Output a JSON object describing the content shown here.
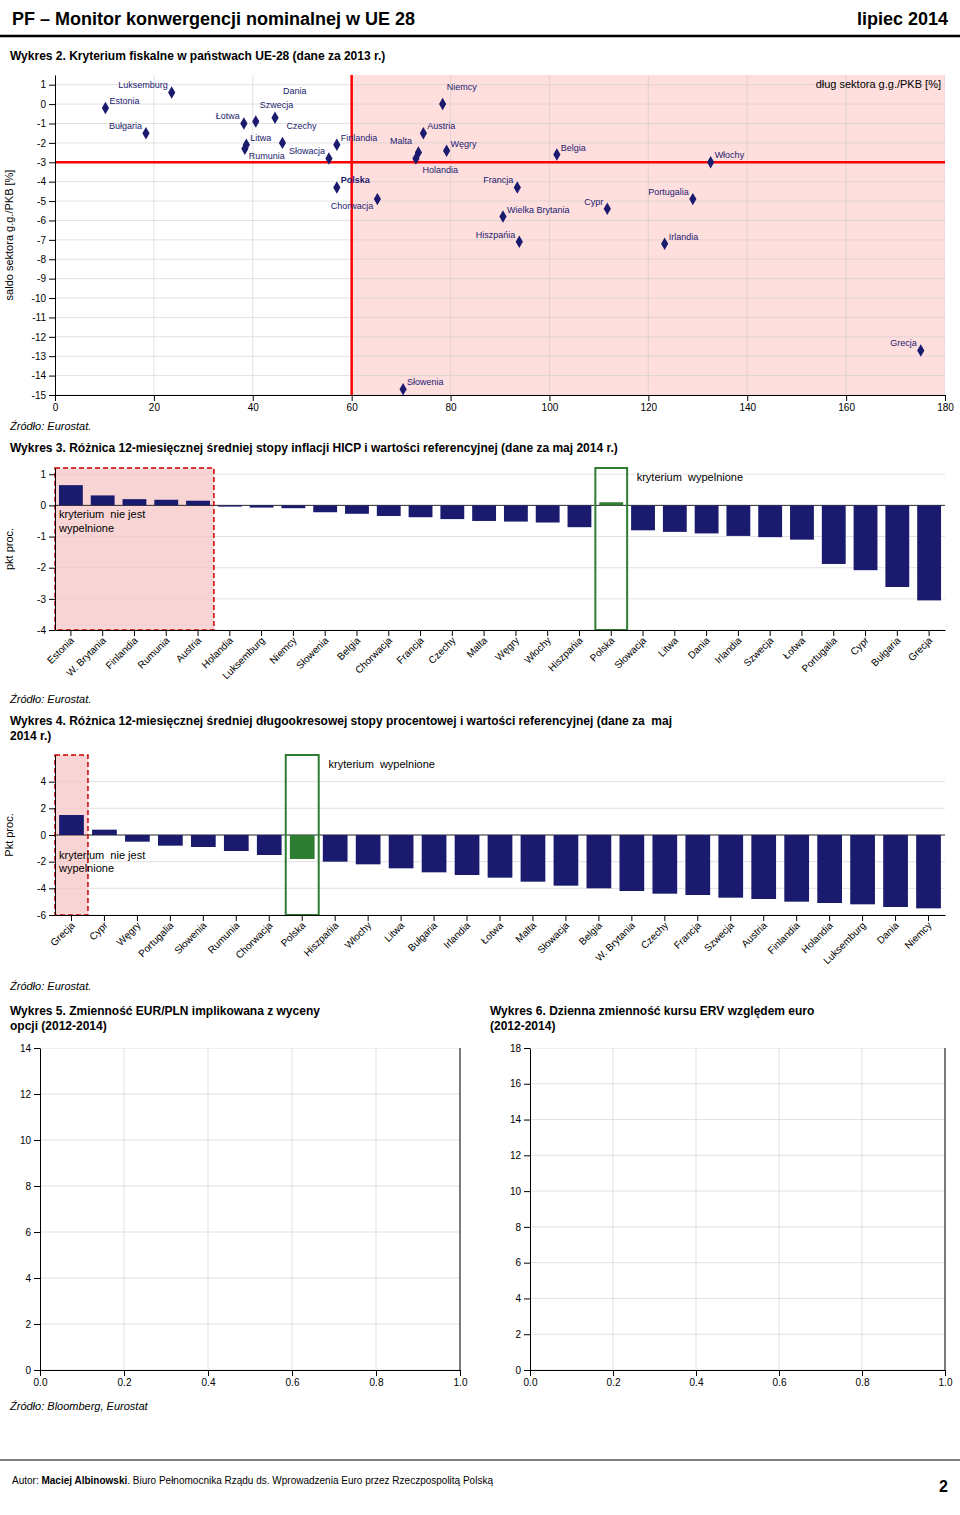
{
  "title": "PF – Monitor konwergencji nominalnej w UE 28",
  "annotations": [
    "lipiec 2014",
    "Źródło: Bloomberg, Eurostat",
    "Autor: ",
    "Maciej Albinowski",
    ". Biuro Pełnomocnika Rządu ds. Wprowadzenia Euro przez Rzeczpospolitą Polską",
    "2"
  ],
  "chart_data": [
    {
      "type": "scatter",
      "title": "Wykres 2. Kryterium fiskalne w państwach UE-28 (dane za 2013 r.)",
      "xlabel": "dług sektora g.g./PKB [%]",
      "ylabel": "saldo sektora g.g./PKB [%]",
      "annotations": [
        "Źródło: Eurostat."
      ],
      "labels": [
        "Estonia",
        "Luksemburg",
        "Bułgaria",
        "Łotwa",
        "Litwa",
        "Czechy",
        "Szwecja",
        "Dania",
        "Rumunia",
        "Słowacja",
        "Finlandia",
        "Austria",
        "Holandia",
        "Malta",
        "Niemcy",
        "Węgry",
        "Belgia",
        "Włochy",
        "Polska",
        "Chorwacja",
        "Francja",
        "Wielka Brytania",
        "Cypr",
        "Portugalia",
        "Hiszpańia",
        "Irlandia",
        "Słowenia",
        "Grecja"
      ],
      "x": [
        10.2,
        23.6,
        18.4,
        38.2,
        38.7,
        46.0,
        40.6,
        44.5,
        38.4,
        55.4,
        57.0,
        74.5,
        73.5,
        73.0,
        78.4,
        79.2,
        101.5,
        132.6,
        57.0,
        65.2,
        93.5,
        90.6,
        111.7,
        129.0,
        93.9,
        123.3,
        70.4,
        175.1
      ],
      "values": [
        -0.2,
        0.6,
        -1.5,
        -1.0,
        -2.1,
        -2.0,
        -0.9,
        -0.7,
        -2.3,
        -2.8,
        -2.1,
        -1.5,
        -2.5,
        -2.8,
        0.0,
        -2.4,
        -2.6,
        -3.0,
        -4.3,
        -4.9,
        -4.3,
        -5.8,
        -5.4,
        -4.9,
        -7.1,
        -7.2,
        -14.7,
        -12.7
      ],
      "color": "#1a1a6e",
      "marker": "diamond",
      "highlight_index": 18,
      "xlim": [
        0,
        180
      ],
      "ylim": [
        -15,
        1.5
      ],
      "xticks": [
        0,
        20,
        40,
        60,
        80,
        100,
        120,
        140,
        160,
        180
      ],
      "yticks": [
        1,
        0,
        -1,
        -2,
        -3,
        -4,
        -5,
        -6,
        -7,
        -8,
        -9,
        -10,
        -11,
        -12,
        -13,
        -14,
        -15
      ],
      "xspan": [
        60,
        180
      ],
      "xline": 60,
      "yline": -3,
      "grid": true
    },
    {
      "type": "bar",
      "title": "Wykres 3. Różnica 12-miesięcznej średniej stopy inflacji HICP i wartości referencyjnej (dane za maj 2014 r.)",
      "ylabel": "pkt proc.",
      "annotations": [
        "Źródło: Eurostat.",
        "kryterium  wypelnione",
        "kryterium  nie jest\nwypelnione"
      ],
      "categories": [
        "Estonia",
        "W. Brytania",
        "Finlandia",
        "Rumunia",
        "Austria",
        "Holandia",
        "Luksemburg",
        "Niemcy",
        "Słowenia",
        "Belgia",
        "Chorwacja",
        "Francja",
        "Czechy",
        "Malta",
        "Węgry",
        "Włochy",
        "Hiszpańia",
        "Polska",
        "Słowacja",
        "Litwa",
        "Dania",
        "Irlandia",
        "Szwecja",
        "Łotwa",
        "Portugalia",
        "Cypr",
        "Bułgaria",
        "Grecja"
      ],
      "values": [
        0.65,
        0.32,
        0.2,
        0.18,
        0.15,
        -0.04,
        -0.07,
        -0.09,
        -0.22,
        -0.27,
        -0.34,
        -0.38,
        -0.44,
        -0.5,
        -0.52,
        -0.55,
        -0.7,
        0.1,
        -0.8,
        -0.85,
        -0.9,
        -0.98,
        -1.02,
        -1.1,
        -1.88,
        -2.08,
        -2.62,
        -3.05
      ],
      "colors": [
        "#1a1a6e",
        "#1a1a6e",
        "#1a1a6e",
        "#1a1a6e",
        "#1a1a6e",
        "#1a1a6e",
        "#1a1a6e",
        "#1a1a6e",
        "#1a1a6e",
        "#1a1a6e",
        "#1a1a6e",
        "#1a1a6e",
        "#1a1a6e",
        "#1a1a6e",
        "#1a1a6e",
        "#1a1a6e",
        "#1a1a6e",
        "#2e7d32",
        "#1a1a6e",
        "#1a1a6e",
        "#1a1a6e",
        "#1a1a6e",
        "#1a1a6e",
        "#1a1a6e",
        "#1a1a6e",
        "#1a1a6e",
        "#1a1a6e",
        "#1a1a6e"
      ],
      "highlight_index": 17,
      "not_fulfilled_count": 5,
      "ylim": [
        -4,
        1.2
      ],
      "yticks": [
        -4,
        -3,
        -2,
        -1,
        0,
        1
      ],
      "grid": "y"
    },
    {
      "type": "bar",
      "title": "Wykres 4. Różnica 12-miesięcznej średniej długookresowej stopy procentowej i wartości referencyjnej (dane za  maj\n2014 r.)",
      "ylabel": "Pkt proc.",
      "annotations": [
        "Źródło: Eurostat.",
        "kryterium  wypelnione",
        "kryterium  nie jest\nwypelnione"
      ],
      "categories": [
        "Grecja",
        "Cypr",
        "Węgry",
        "Portugalia",
        "Słowenia",
        "Rumunia",
        "Chorwacja",
        "Polska",
        "Hiszpańia",
        "Włochy",
        "Litwa",
        "Bułgaria",
        "Irlandia",
        "Łotwa",
        "Malta",
        "Słowacja",
        "Belgia",
        "W. Brytania",
        "Czechy",
        "Francja",
        "Szwecja",
        "Austria",
        "Finlandia",
        "Holandia",
        "Luksemburg",
        "Dania",
        "Niemcy"
      ],
      "values": [
        1.5,
        0.4,
        -0.5,
        -0.8,
        -0.9,
        -1.2,
        -1.5,
        -1.8,
        -2.0,
        -2.2,
        -2.5,
        -2.8,
        -3.0,
        -3.2,
        -3.5,
        -3.8,
        -4.0,
        -4.2,
        -4.4,
        -4.5,
        -4.7,
        -4.8,
        -5.0,
        -5.1,
        -5.2,
        -5.4,
        -5.5
      ],
      "colors": [
        "#1a1a6e",
        "#1a1a6e",
        "#1a1a6e",
        "#1a1a6e",
        "#1a1a6e",
        "#1a1a6e",
        "#1a1a6e",
        "#2e7d32",
        "#1a1a6e",
        "#1a1a6e",
        "#1a1a6e",
        "#1a1a6e",
        "#1a1a6e",
        "#1a1a6e",
        "#1a1a6e",
        "#1a1a6e",
        "#1a1a6e",
        "#1a1a6e",
        "#1a1a6e",
        "#1a1a6e",
        "#1a1a6e",
        "#1a1a6e",
        "#1a1a6e",
        "#1a1a6e",
        "#1a1a6e",
        "#1a1a6e",
        "#1a1a6e"
      ],
      "highlight_index": 7,
      "not_fulfilled_count": 1,
      "ylim": [
        -6,
        6
      ],
      "yticks": [
        -6,
        -4,
        -2,
        0,
        2,
        4
      ],
      "grid": "y"
    },
    {
      "type": "line",
      "title": "Wykres 5. Zmienność EUR/PLN implikowana z wyceny\nopcji (2012-2014)",
      "series": [],
      "xlim": [
        0,
        1
      ],
      "xticks": [
        {
          "value": 0,
          "label": "0.0"
        },
        {
          "value": 0.2,
          "label": "0.2"
        },
        {
          "value": 0.4,
          "label": "0.4"
        },
        {
          "value": 0.6,
          "label": "0.6"
        },
        {
          "value": 0.8,
          "label": "0.8"
        },
        {
          "value": 1,
          "label": "1.0"
        }
      ],
      "ylim": [
        0,
        14
      ],
      "yticks": [
        0,
        2,
        4,
        6,
        8,
        10,
        12,
        14
      ],
      "grid": true
    },
    {
      "type": "line",
      "title": "Wykres 6. Dzienna zmienność kursu ERV względem euro\n(2012-2014)",
      "series": [],
      "xlim": [
        0,
        1
      ],
      "xticks": [
        {
          "value": 0,
          "label": "0.0"
        },
        {
          "value": 0.2,
          "label": "0.2"
        },
        {
          "value": 0.4,
          "label": "0.4"
        },
        {
          "value": 0.6,
          "label": "0.6"
        },
        {
          "value": 0.8,
          "label": "0.8"
        },
        {
          "value": 1,
          "label": "1.0"
        }
      ],
      "ylim": [
        0,
        18
      ],
      "yticks": [
        0,
        2,
        4,
        6,
        8,
        10,
        12,
        14,
        16,
        18
      ],
      "grid": true
    }
  ]
}
